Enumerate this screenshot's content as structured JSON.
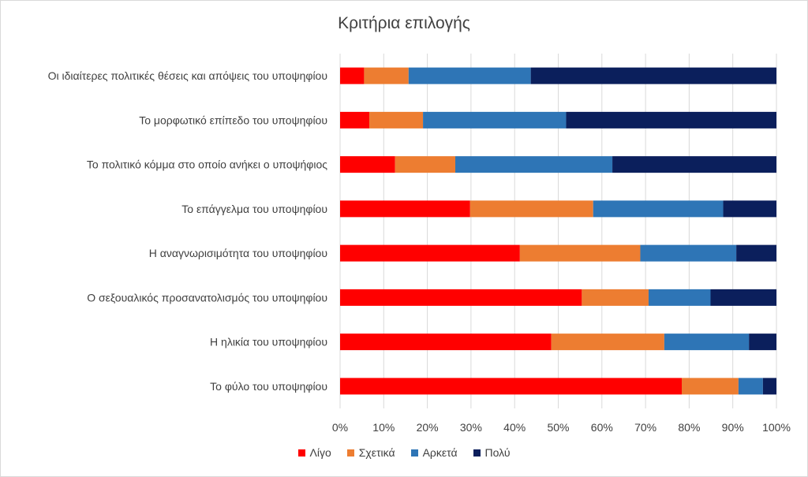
{
  "chart_data": {
    "type": "bar",
    "orientation": "horizontal",
    "stacking": "percent",
    "title": "Κριτήρια επιλογής",
    "categories": [
      "Οι ιδιαίτερες πολιτικές θέσεις και απόψεις του υποψηφίου",
      "Το μορφωτικό επίπεδο του υποψηφίου",
      "Το πολιτικό κόμμα στο οποίο ανήκει ο υποψήφιος",
      "Το επάγγελμα του υποψηφίου",
      "Η αναγνωρισιμότητα του υποψηφίου",
      "Ο σεξουαλικός προσανατολισμός του υποψηφίου",
      "Η ηλικία του υποψηφίου",
      "Το φύλο του υποψηφίου"
    ],
    "series": [
      {
        "name": "Λίγο",
        "color": "#ff0000",
        "values": [
          5.5,
          6.7,
          12.6,
          29.8,
          41.2,
          55.4,
          48.4,
          78.3
        ]
      },
      {
        "name": "Σχετικά",
        "color": "#ed7d31",
        "values": [
          10.2,
          12.3,
          13.8,
          28.2,
          27.6,
          15.3,
          25.9,
          13.0
        ]
      },
      {
        "name": "Αρκετά",
        "color": "#2e75b6",
        "values": [
          28.0,
          32.8,
          36.0,
          29.8,
          22.0,
          14.2,
          19.4,
          5.6
        ]
      },
      {
        "name": "Πολύ",
        "color": "#0b1f5c",
        "values": [
          56.3,
          48.2,
          37.6,
          12.2,
          9.2,
          15.1,
          6.3,
          3.1
        ]
      }
    ],
    "xlim": [
      0,
      100
    ],
    "x_ticks": [
      "0%",
      "10%",
      "20%",
      "30%",
      "40%",
      "50%",
      "60%",
      "70%",
      "80%",
      "90%",
      "100%"
    ],
    "xlabel": "",
    "ylabel": "",
    "grid": true,
    "legend_position": "bottom"
  }
}
